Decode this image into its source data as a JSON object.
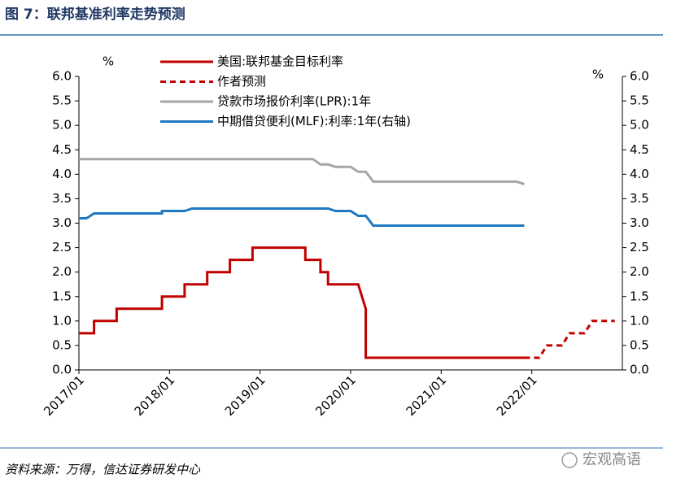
{
  "chart_data": {
    "type": "line",
    "title": "图 7：联邦基准利率走势预测",
    "ylabel": "%",
    "y2label": "%",
    "source": "资料来源：万得，信达证券研发中心",
    "watermark": "宏观高语",
    "xlim": [
      "2017/01",
      "2023/01"
    ],
    "xticks": [
      "2017/01",
      "2018/01",
      "2019/01",
      "2020/01",
      "2021/01",
      "2022/01"
    ],
    "ylim": [
      0,
      6
    ],
    "y2lim": [
      0,
      6
    ],
    "yticks": [
      {
        "value": 0,
        "label": "0.0"
      },
      {
        "value": 0.5,
        "label": "0.5"
      },
      {
        "value": 1,
        "label": "1.0"
      },
      {
        "value": 1.5,
        "label": "1.5"
      },
      {
        "value": 2,
        "label": "2.0"
      },
      {
        "value": 2.5,
        "label": "2.5"
      },
      {
        "value": 3,
        "label": "3.0"
      },
      {
        "value": 3.5,
        "label": "3.5"
      },
      {
        "value": 4,
        "label": "4.0"
      },
      {
        "value": 4.5,
        "label": "4.5"
      },
      {
        "value": 5,
        "label": "5.0"
      },
      {
        "value": 5.5,
        "label": "5.5"
      },
      {
        "value": 6,
        "label": "6.0"
      }
    ],
    "y2ticks": [
      {
        "value": 0,
        "label": "0.0"
      },
      {
        "value": 0.5,
        "label": "0.5"
      },
      {
        "value": 1,
        "label": "1.0"
      },
      {
        "value": 1.5,
        "label": "1.5"
      },
      {
        "value": 2,
        "label": "2.0"
      },
      {
        "value": 2.5,
        "label": "2.5"
      },
      {
        "value": 3,
        "label": "3.0"
      },
      {
        "value": 3.5,
        "label": "3.5"
      },
      {
        "value": 4,
        "label": "4.0"
      },
      {
        "value": 4.5,
        "label": "4.5"
      },
      {
        "value": 5,
        "label": "5.0"
      },
      {
        "value": 5.5,
        "label": "5.5"
      },
      {
        "value": 6,
        "label": "6.0"
      }
    ],
    "series": [
      {
        "name": "美国:联邦基金目标利率",
        "color": "#c00000",
        "linestyle": "solid",
        "x": [
          "2017/01",
          "2017/03",
          "2017/03",
          "2017/06",
          "2017/06",
          "2017/12",
          "2017/12",
          "2018/03",
          "2018/03",
          "2018/06",
          "2018/06",
          "2018/09",
          "2018/09",
          "2018/12",
          "2018/12",
          "2019/07",
          "2019/07",
          "2019/09",
          "2019/09",
          "2019/10",
          "2019/10",
          "2020/02",
          "2020/03",
          "2020/03",
          "2021/12"
        ],
        "values": [
          0.75,
          0.75,
          1.0,
          1.0,
          1.25,
          1.25,
          1.5,
          1.5,
          1.75,
          1.75,
          2.0,
          2.0,
          2.25,
          2.25,
          2.5,
          2.5,
          2.25,
          2.25,
          2.0,
          2.0,
          1.75,
          1.75,
          1.25,
          0.25,
          0.25
        ]
      },
      {
        "name": "作者预测",
        "color": "#c00000",
        "linestyle": "dashed",
        "x": [
          "2021/12",
          "2022/02",
          "2022/03",
          "2022/05",
          "2022/06",
          "2022/08",
          "2022/09",
          "2022/12"
        ],
        "values": [
          0.25,
          0.25,
          0.5,
          0.5,
          0.75,
          0.75,
          1.0,
          1.0
        ]
      },
      {
        "name": "贷款市场报价利率(LPR):1年",
        "color": "#a6a6a6",
        "linestyle": "solid",
        "x": [
          "2017/01",
          "2019/08",
          "2019/09",
          "2019/10",
          "2019/11",
          "2020/01",
          "2020/02",
          "2020/03",
          "2020/04",
          "2021/11",
          "2021/12"
        ],
        "values": [
          4.31,
          4.31,
          4.2,
          4.2,
          4.15,
          4.15,
          4.05,
          4.05,
          3.85,
          3.85,
          3.8
        ]
      },
      {
        "name": "中期借贷便利(MLF):利率:1年(右轴)",
        "color": "#1f78c1",
        "linestyle": "solid",
        "axis": "y2",
        "x": [
          "2017/01",
          "2017/02",
          "2017/03",
          "2017/12",
          "2017/12",
          "2018/03",
          "2018/04",
          "2019/10",
          "2019/11",
          "2020/01",
          "2020/02",
          "2020/03",
          "2020/04",
          "2021/12"
        ],
        "values": [
          3.1,
          3.1,
          3.2,
          3.2,
          3.25,
          3.25,
          3.3,
          3.3,
          3.25,
          3.25,
          3.15,
          3.15,
          2.95,
          2.95
        ]
      }
    ]
  }
}
